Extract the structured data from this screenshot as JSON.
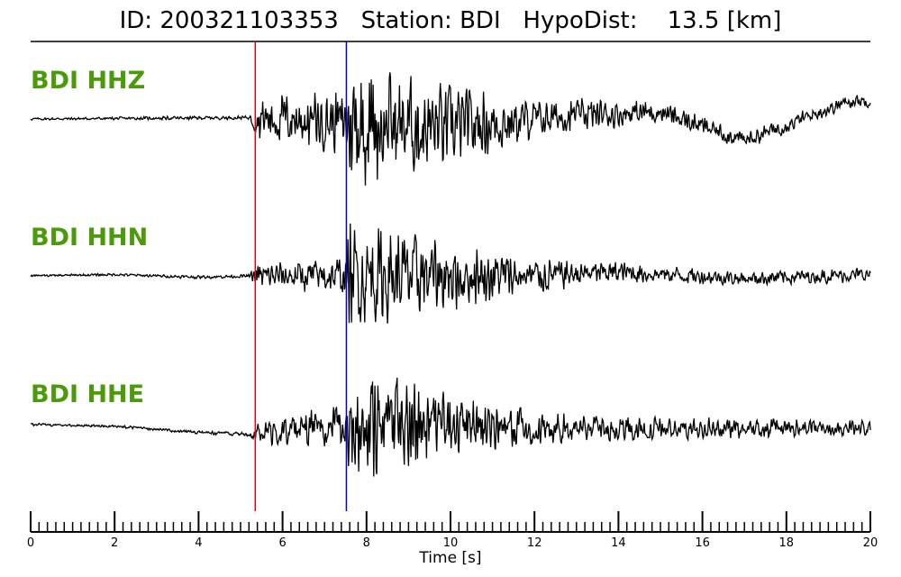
{
  "title": {
    "id_label": "ID:",
    "id_value": "200321103353",
    "station_label": "Station:",
    "station_value": "BDI",
    "hypodist_label": "HypoDist:",
    "hypodist_value": "13.5",
    "hypodist_unit": "[km]"
  },
  "colors": {
    "label": "#4a9a0a",
    "p_pick": "#e8000b",
    "s_pick": "#0000d8",
    "trace": "#000000"
  },
  "chart_data": {
    "type": "line",
    "xlabel": "Time [s]",
    "xlim": [
      0,
      20
    ],
    "x_ticks": [
      0,
      2,
      4,
      6,
      8,
      10,
      12,
      14,
      16,
      18,
      20
    ],
    "minor_tick_step": 0.2,
    "picks": [
      {
        "phase": "P",
        "time": 5.35,
        "color": "#e8000b"
      },
      {
        "phase": "S",
        "time": 7.52,
        "color": "#0000d8"
      }
    ],
    "series": [
      {
        "name": "BDI HHZ",
        "lowfreq_wave": [
          [
            0,
            0
          ],
          [
            5.35,
            0.02
          ],
          [
            10,
            -0.12
          ],
          [
            13,
            0.05
          ],
          [
            15,
            0.1
          ],
          [
            17,
            -0.3
          ],
          [
            19.5,
            0.25
          ],
          [
            20,
            0.25
          ]
        ],
        "envelope": [
          [
            0,
            0.02
          ],
          [
            5.2,
            0.03
          ],
          [
            5.4,
            0.35
          ],
          [
            7.5,
            0.5
          ],
          [
            7.6,
            1.0
          ],
          [
            9.5,
            0.75
          ],
          [
            12,
            0.28
          ],
          [
            16,
            0.15
          ],
          [
            20,
            0.1
          ]
        ]
      },
      {
        "name": "BDI HHN",
        "lowfreq_wave": [
          [
            0,
            0
          ],
          [
            2,
            0.02
          ],
          [
            4,
            -0.02
          ],
          [
            5.35,
            0
          ],
          [
            12,
            0
          ],
          [
            14,
            0.06
          ],
          [
            17,
            -0.04
          ],
          [
            20,
            0.02
          ]
        ],
        "envelope": [
          [
            0,
            0.02
          ],
          [
            5.2,
            0.03
          ],
          [
            5.4,
            0.22
          ],
          [
            7.5,
            0.35
          ],
          [
            7.6,
            0.9
          ],
          [
            9,
            0.75
          ],
          [
            11,
            0.45
          ],
          [
            13,
            0.22
          ],
          [
            16,
            0.14
          ],
          [
            20,
            0.12
          ]
        ]
      },
      {
        "name": "BDI HHE",
        "lowfreq_wave": [
          [
            0,
            0.07
          ],
          [
            2,
            0.04
          ],
          [
            4,
            -0.05
          ],
          [
            5.3,
            -0.08
          ],
          [
            6.5,
            0.02
          ],
          [
            8,
            0.1
          ],
          [
            12,
            0.0
          ],
          [
            20,
            0.02
          ]
        ],
        "envelope": [
          [
            0,
            0.02
          ],
          [
            5.2,
            0.03
          ],
          [
            5.4,
            0.2
          ],
          [
            7.5,
            0.35
          ],
          [
            7.6,
            0.95
          ],
          [
            9,
            0.8
          ],
          [
            11,
            0.4
          ],
          [
            13,
            0.22
          ],
          [
            20,
            0.12
          ]
        ]
      }
    ]
  }
}
